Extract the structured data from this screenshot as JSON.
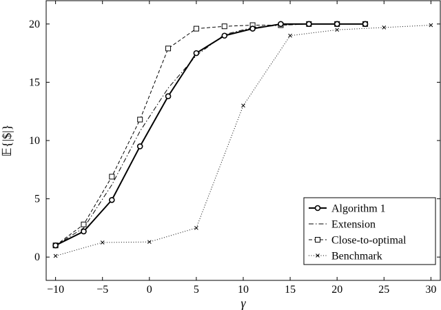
{
  "chart_data": {
    "type": "line",
    "xlabel": "γ",
    "ylabel": "𝔼{|$|}",
    "xlim": [
      -11,
      31
    ],
    "ylim": [
      -2,
      22
    ],
    "xticks": [
      -10,
      -5,
      0,
      5,
      10,
      15,
      20,
      25,
      30
    ],
    "yticks": [
      0,
      5,
      10,
      15,
      20
    ],
    "xtick_labels": [
      "−10",
      "−5",
      "0",
      "5",
      "10",
      "15",
      "20",
      "25",
      "30"
    ],
    "ytick_labels": [
      "0",
      "5",
      "10",
      "15",
      "20"
    ],
    "grid": false,
    "legend_position": "bottom-right",
    "series": [
      {
        "name": "Algorithm 1",
        "style": "solid-circle",
        "x": [
          -10,
          -7,
          -4,
          -1,
          2,
          5,
          8,
          11,
          14,
          17,
          20,
          23
        ],
        "y": [
          1.0,
          2.2,
          4.9,
          9.5,
          13.8,
          17.5,
          19.0,
          19.6,
          20.0,
          20.0,
          20.0,
          20.0
        ]
      },
      {
        "name": "Extension",
        "style": "dashdot",
        "x": [
          -10,
          -7,
          -4,
          -1,
          2,
          5,
          8,
          11,
          14,
          17,
          20,
          23
        ],
        "y": [
          1.0,
          2.5,
          6.2,
          10.8,
          14.5,
          17.3,
          19.1,
          19.7,
          19.9,
          20.0,
          20.0,
          20.0
        ]
      },
      {
        "name": "Close-to-optimal",
        "style": "dashed-square",
        "x": [
          -10,
          -7,
          -4,
          -1,
          2,
          5,
          8,
          11,
          14,
          17,
          20,
          23
        ],
        "y": [
          1.0,
          2.8,
          6.9,
          11.8,
          17.9,
          19.6,
          19.8,
          19.9,
          19.9,
          20.0,
          20.0,
          20.0
        ]
      },
      {
        "name": "Benchmark",
        "style": "dotted-cross",
        "x": [
          -10,
          -5,
          0,
          5,
          10,
          15,
          20,
          25,
          30
        ],
        "y": [
          0.1,
          1.25,
          1.3,
          2.5,
          13.0,
          19.0,
          19.5,
          19.7,
          19.9
        ]
      }
    ]
  }
}
